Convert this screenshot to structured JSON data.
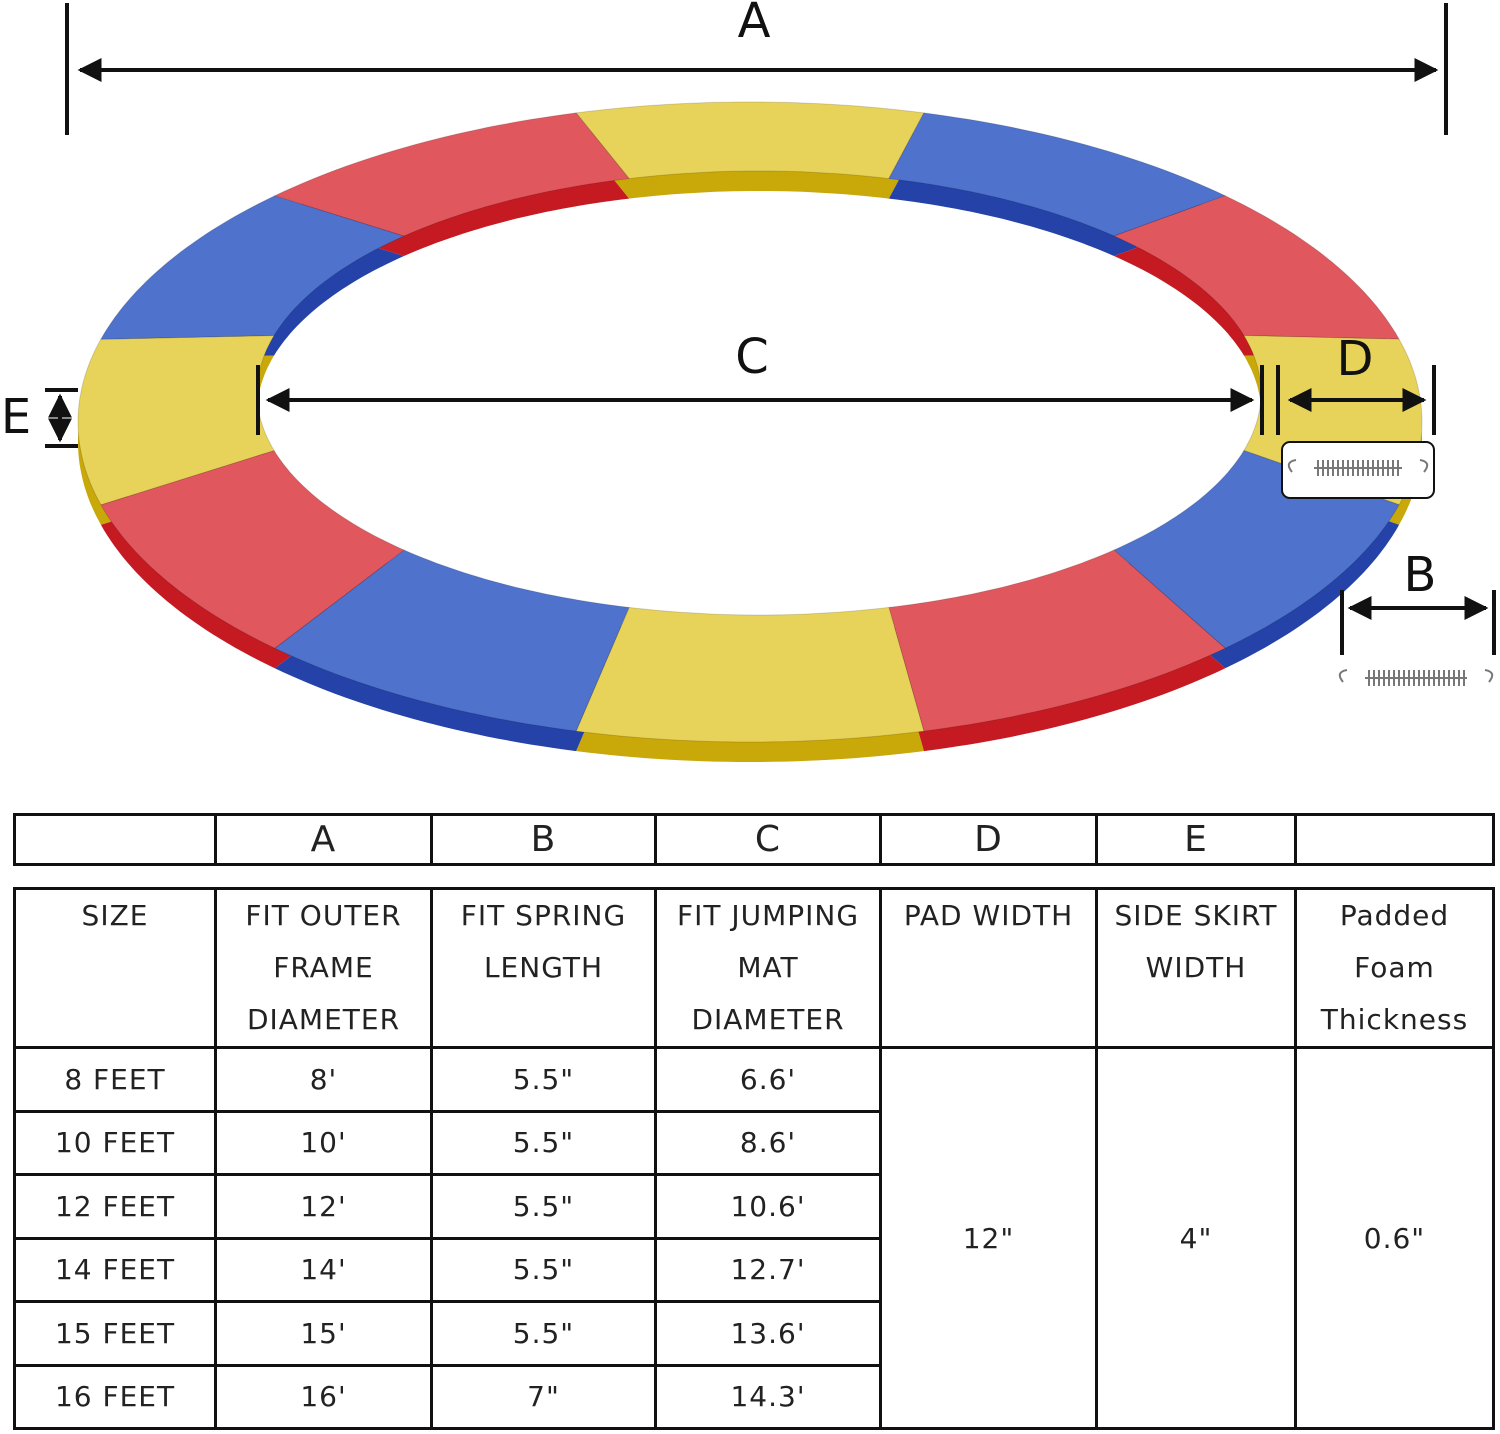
{
  "diagram": {
    "labels": [
      "A",
      "B",
      "C",
      "D",
      "E"
    ]
  },
  "table": {
    "letter_row": [
      "A",
      "B",
      "C",
      "D",
      "E"
    ],
    "header": [
      [
        "SIZE"
      ],
      [
        "FIT OUTER",
        "FRAME",
        "DIAMETER"
      ],
      [
        "FIT SPRING",
        "LENGTH"
      ],
      [
        "FIT JUMPING",
        "MAT",
        "DIAMETER"
      ],
      [
        "PAD WIDTH"
      ],
      [
        "SIDE SKIRT",
        "WIDTH"
      ],
      [
        "Padded",
        "Foam",
        "Thickness"
      ]
    ],
    "rows": [
      [
        "8 FEET",
        "8'",
        "5.5\"",
        "6.6'"
      ],
      [
        "10 FEET",
        "10'",
        "5.5\"",
        "8.6'"
      ],
      [
        "12 FEET",
        "12'",
        "5.5\"",
        "10.6'"
      ],
      [
        "14 FEET",
        "14'",
        "5.5\"",
        "12.7'"
      ],
      [
        "15 FEET",
        "15'",
        "5.5\"",
        "13.6'"
      ],
      [
        "16 FEET",
        "16'",
        "7\"",
        "14.3'"
      ]
    ],
    "shared": [
      "12\"",
      "4\"",
      "0.6\""
    ]
  }
}
